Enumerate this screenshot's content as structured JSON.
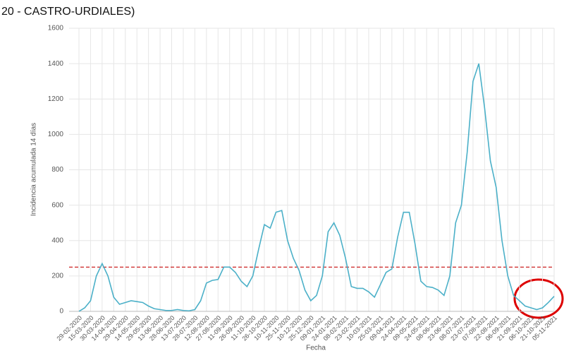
{
  "chart_data": {
    "type": "line",
    "title": "20 - CASTRO-URDIALES)",
    "x_label": "Fecha",
    "y_label": "Incidencia acumulada 14 días",
    "categories": [
      "29-02-2020",
      null,
      "15-03-2020",
      null,
      "30-03-2020",
      null,
      "14-04-2020",
      null,
      "29-04-2020",
      null,
      "14-05-2020",
      null,
      "29-05-2020",
      null,
      "13-06-2020",
      null,
      "28-06-2020",
      null,
      "13-07-2020",
      null,
      "28-07-2020",
      null,
      "12-08-2020",
      null,
      "27-08-2020",
      null,
      "11-09-2020",
      null,
      "26-09-2020",
      null,
      "11-10-2020",
      null,
      "26-10-2020",
      null,
      "10-11-2020",
      null,
      "25-11-2020",
      null,
      "10-12-2020",
      null,
      "25-12-2020",
      null,
      "09-01-2021",
      null,
      "24-01-2021",
      null,
      "08-02-2021",
      null,
      "23-02-2021",
      null,
      "10-03-2021",
      null,
      "25-03-2021",
      null,
      "09-04-2021",
      null,
      "24-04-2021",
      null,
      "09-05-2021",
      null,
      "24-05-2021",
      null,
      "08-06-2021",
      null,
      "23-06-2021",
      null,
      "08-07-2021",
      null,
      "23-07-2021",
      null,
      "07-08-2021",
      null,
      "22-08-2021",
      null,
      "06-09-2021",
      null,
      "21-09-2021",
      null,
      "06-10-2021",
      null,
      "21-10-2021",
      null,
      "05-11-2021"
    ],
    "series": [
      {
        "name": "Incidencia",
        "color": "#4bb0c8",
        "values": [
          0,
          20,
          60,
          200,
          270,
          200,
          80,
          40,
          50,
          60,
          55,
          50,
          30,
          15,
          10,
          5,
          5,
          10,
          5,
          3,
          10,
          60,
          160,
          175,
          180,
          250,
          250,
          220,
          170,
          140,
          200,
          350,
          490,
          470,
          560,
          570,
          400,
          300,
          230,
          120,
          60,
          90,
          200,
          450,
          500,
          430,
          300,
          140,
          130,
          130,
          110,
          80,
          150,
          220,
          240,
          420,
          560,
          560,
          380,
          170,
          140,
          135,
          120,
          90,
          200,
          500,
          600,
          900,
          1300,
          1400,
          1150,
          850,
          700,
          400,
          200,
          90,
          60,
          30,
          20,
          10,
          20,
          50,
          85
        ]
      }
    ],
    "threshold": {
      "value": 250,
      "color": "#cc2222"
    },
    "ylim": [
      0,
      1600
    ],
    "yticks": [
      0,
      200,
      400,
      600,
      800,
      1000,
      1200,
      1400,
      1600
    ],
    "grid": true
  }
}
